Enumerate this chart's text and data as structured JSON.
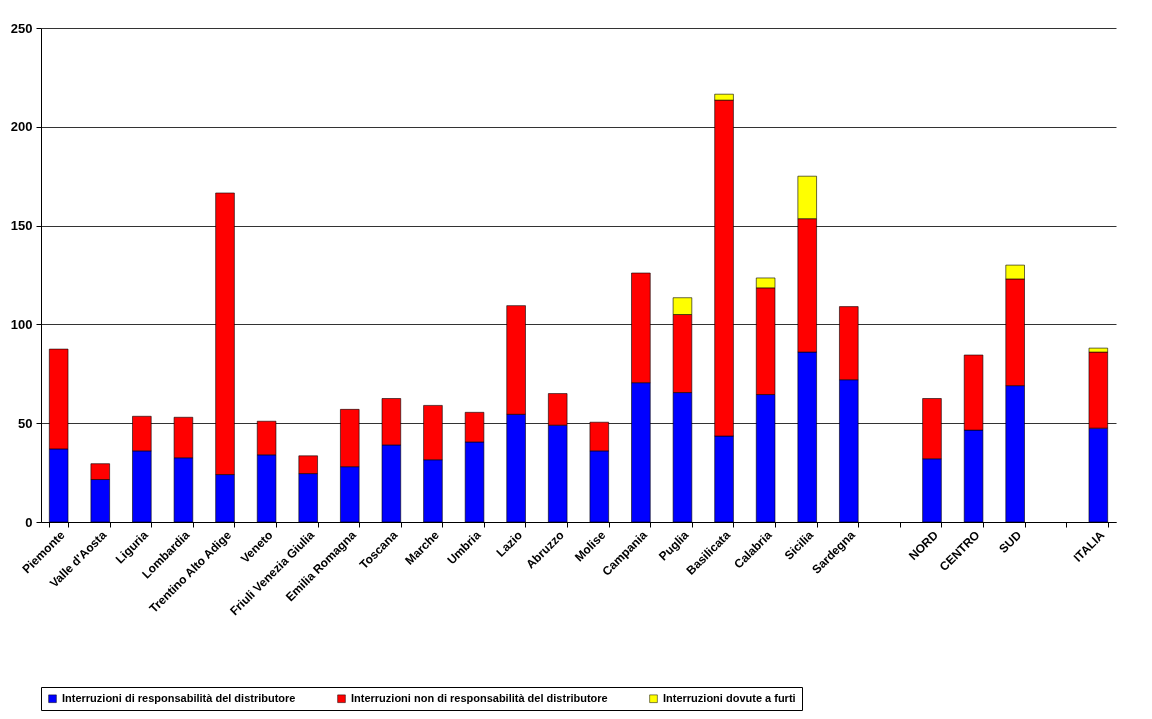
{
  "chart_data": {
    "type": "bar",
    "stacked": true,
    "categories": [
      "Piemonte",
      "Valle d'Aosta",
      "Liguria",
      "Lombardia",
      "Trentino Alto Adige",
      "Veneto",
      "Friuli Venezia Giulia",
      "Emilia Romagna",
      "Toscana",
      "Marche",
      "Umbria",
      "Lazio",
      "Abruzzo",
      "Molise",
      "Campania",
      "Puglia",
      "Basilicata",
      "Calabria",
      "Sicilia",
      "Sardegna",
      null,
      "NORD",
      "CENTRO",
      "SUD",
      null,
      "ITALIA"
    ],
    "series": [
      {
        "name": "Interruzioni di responsabilità del distributore",
        "color": "#0000ff",
        "values": [
          37,
          21.5,
          36,
          32.5,
          24,
          34,
          24.5,
          28,
          39,
          31.5,
          40.5,
          54.5,
          49,
          36,
          70.5,
          65.5,
          43.5,
          64.5,
          86,
          72,
          null,
          32,
          46.5,
          69,
          null,
          47.5
        ]
      },
      {
        "name": "Interruzioni non di responsabilità del distributore",
        "color": "#ff0000",
        "values": [
          50.5,
          8,
          17.5,
          20.5,
          142.5,
          17,
          9,
          29,
          23.5,
          27.5,
          15,
          55,
          16,
          14.5,
          55.5,
          39.5,
          170,
          54,
          67.5,
          37,
          null,
          30.5,
          38,
          54,
          null,
          38.5
        ]
      },
      {
        "name": "Interruzioni dovute a furti",
        "color": "#ffff00",
        "values": [
          null,
          null,
          null,
          null,
          null,
          null,
          null,
          null,
          null,
          null,
          null,
          null,
          null,
          null,
          null,
          8.5,
          3,
          5,
          21.5,
          null,
          null,
          null,
          null,
          7,
          null,
          2
        ]
      }
    ],
    "ylim": [
      0,
      250
    ],
    "yticks": [
      0,
      50,
      100,
      150,
      200,
      250
    ],
    "grid": "y",
    "legend": "bottom"
  }
}
